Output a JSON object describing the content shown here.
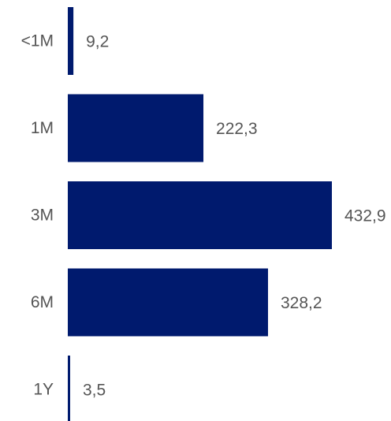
{
  "chart_data": {
    "type": "bar",
    "orientation": "horizontal",
    "categories": [
      "<1M",
      "1M",
      "3M",
      "6M",
      "1Y"
    ],
    "values": [
      9.2,
      222.3,
      432.9,
      328.2,
      3.5
    ],
    "value_labels": [
      "9,2",
      "222,3",
      "432,9",
      "328,2",
      "3,5"
    ],
    "bar_color": "#001a6e",
    "grid": false,
    "legend": "none"
  }
}
